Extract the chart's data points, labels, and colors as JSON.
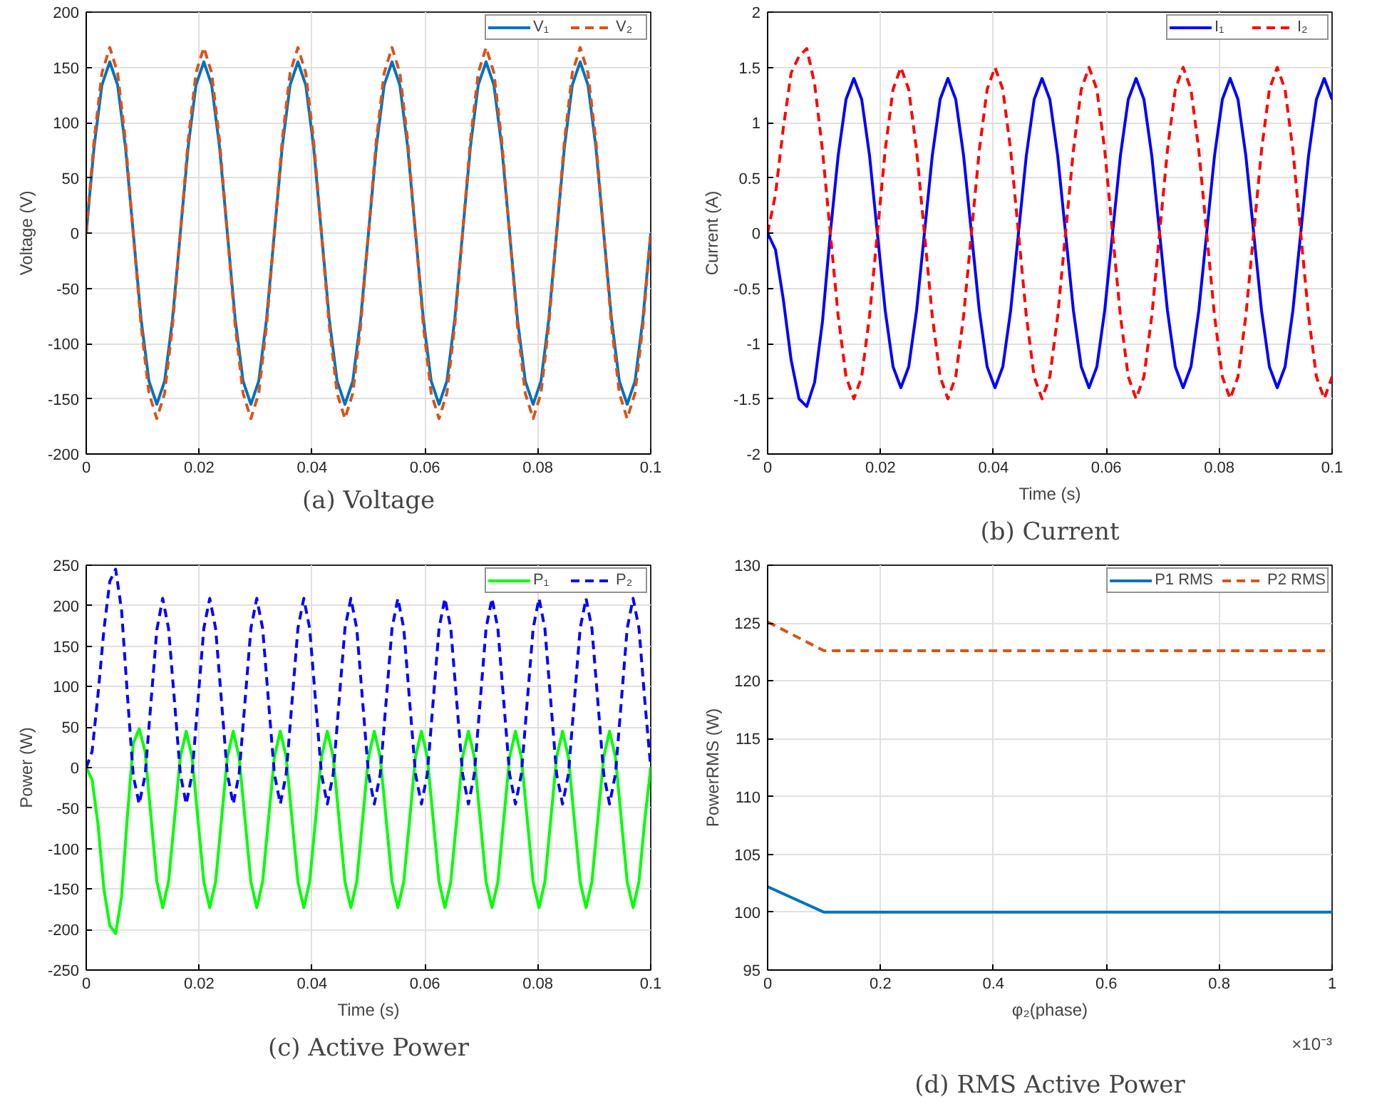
{
  "chart_data": [
    {
      "type": "line",
      "title": "(a) Voltage",
      "ylabel": "Voltage (V)",
      "grid": true,
      "legend": "top right",
      "xlim": [
        0,
        0.1
      ],
      "ylim": [
        -200,
        200
      ],
      "xticks": [
        0,
        0.02,
        0.04,
        0.06,
        0.08,
        0.1
      ],
      "yticks": [
        -200,
        -150,
        -100,
        -50,
        0,
        50,
        100,
        150,
        200
      ],
      "x": [
        0,
        0.00139,
        0.00278,
        0.00417,
        0.00556,
        0.00694,
        0.00833,
        0.00972,
        0.01111,
        0.0125,
        0.01389,
        0.01528,
        0.01667,
        0.01806,
        0.01944,
        0.02083,
        0.02222,
        0.02361,
        0.025,
        0.02639,
        0.02778,
        0.02917,
        0.03056,
        0.03194,
        0.03333,
        0.03472,
        0.03611,
        0.0375,
        0.03889,
        0.04028,
        0.04167,
        0.04306,
        0.04444,
        0.04583,
        0.04722,
        0.04861,
        0.05,
        0.05139,
        0.05278,
        0.05417,
        0.05556,
        0.05694,
        0.05833,
        0.05972,
        0.06111,
        0.0625,
        0.06389,
        0.06528,
        0.06667,
        0.06806,
        0.06944,
        0.07083,
        0.07222,
        0.07361,
        0.075,
        0.07639,
        0.07778,
        0.07917,
        0.08056,
        0.08194,
        0.08333,
        0.08472,
        0.08611,
        0.0875,
        0.08889,
        0.09028,
        0.09167,
        0.09306,
        0.09444,
        0.09583,
        0.09722,
        0.09861,
        0.1
      ],
      "series": [
        {
          "name": "V₁",
          "color": "#0072bd",
          "line_style": "solid",
          "values": [
            0,
            78,
            134,
            155,
            134,
            78,
            0,
            -78,
            -134,
            -155,
            -134,
            -78,
            0,
            78,
            134,
            155,
            134,
            78,
            0,
            -78,
            -134,
            -155,
            -134,
            -78,
            0,
            78,
            134,
            155,
            134,
            78,
            0,
            -78,
            -134,
            -155,
            -134,
            -78,
            0,
            78,
            134,
            155,
            134,
            78,
            0,
            -78,
            -134,
            -155,
            -134,
            -78,
            0,
            78,
            134,
            155,
            134,
            78,
            0,
            -78,
            -134,
            -155,
            -134,
            -78,
            0,
            78,
            134,
            155,
            134,
            78,
            0,
            -78,
            -134,
            -155,
            -134,
            -78,
            0
          ]
        },
        {
          "name": "V₂",
          "color": "#d95319",
          "line_style": "dashed",
          "values": [
            0,
            84,
            145,
            168,
            145,
            84,
            0,
            -84,
            -145,
            -168,
            -145,
            -84,
            0,
            84,
            145,
            168,
            145,
            84,
            0,
            -84,
            -145,
            -168,
            -145,
            -84,
            0,
            84,
            145,
            168,
            145,
            84,
            0,
            -84,
            -145,
            -168,
            -145,
            -84,
            0,
            84,
            145,
            168,
            145,
            84,
            0,
            -84,
            -145,
            -168,
            -145,
            -84,
            0,
            84,
            145,
            168,
            145,
            84,
            0,
            -84,
            -145,
            -168,
            -145,
            -84,
            0,
            84,
            145,
            168,
            145,
            84,
            0,
            -84,
            -145,
            -168,
            -145,
            -84,
            0
          ]
        }
      ]
    },
    {
      "type": "line",
      "title": "(b) Current",
      "xlabel": "Time (s)",
      "ylabel": "Current (A)",
      "grid": true,
      "legend": "top right",
      "xlim": [
        0,
        0.1
      ],
      "ylim": [
        -2,
        2
      ],
      "xticks": [
        0,
        0.02,
        0.04,
        0.06,
        0.08,
        0.1
      ],
      "yticks": [
        -2,
        -1.5,
        -1,
        -0.5,
        0,
        0.5,
        1,
        1.5,
        2
      ],
      "x": [
        0,
        0.00139,
        0.00278,
        0.00417,
        0.00556,
        0.00694,
        0.00833,
        0.00972,
        0.01111,
        0.0125,
        0.01389,
        0.01528,
        0.01667,
        0.01806,
        0.01944,
        0.02083,
        0.02222,
        0.02361,
        0.025,
        0.02639,
        0.02778,
        0.02917,
        0.03056,
        0.03194,
        0.03333,
        0.03472,
        0.03611,
        0.0375,
        0.03889,
        0.04028,
        0.04167,
        0.04306,
        0.04444,
        0.04583,
        0.04722,
        0.04861,
        0.05,
        0.05139,
        0.05278,
        0.05417,
        0.05556,
        0.05694,
        0.05833,
        0.05972,
        0.06111,
        0.0625,
        0.06389,
        0.06528,
        0.06667,
        0.06806,
        0.06944,
        0.07083,
        0.07222,
        0.07361,
        0.075,
        0.07639,
        0.07778,
        0.07917,
        0.08056,
        0.08194,
        0.08333,
        0.08472,
        0.08611,
        0.0875,
        0.08889,
        0.09028,
        0.09167,
        0.09306,
        0.09444,
        0.09583,
        0.09722,
        0.09861,
        0.1
      ],
      "series": [
        {
          "name": "I₁",
          "color": "#0000ff",
          "line_style": "solid",
          "values": [
            0,
            -0.15,
            -0.6,
            -1.15,
            -1.5,
            -1.57,
            -1.35,
            -0.8,
            0,
            0.7,
            1.21,
            1.4,
            1.21,
            0.7,
            0,
            -0.7,
            -1.21,
            -1.4,
            -1.21,
            -0.7,
            0,
            0.7,
            1.21,
            1.4,
            1.21,
            0.7,
            0,
            -0.7,
            -1.21,
            -1.4,
            -1.21,
            -0.7,
            0,
            0.7,
            1.21,
            1.4,
            1.21,
            0.7,
            0,
            -0.7,
            -1.21,
            -1.4,
            -1.21,
            -0.7,
            0,
            0.7,
            1.21,
            1.4,
            1.21,
            0.7,
            0,
            -0.7,
            -1.21,
            -1.4,
            -1.21,
            -0.7,
            0,
            0.7,
            1.21,
            1.4,
            1.21,
            0.7,
            0,
            -0.7,
            -1.21,
            -1.4,
            -1.21,
            -0.7,
            0,
            0.7,
            1.21,
            1.4,
            1.21
          ]
        },
        {
          "name": "I₂",
          "color": "#ff0000",
          "line_style": "dashed",
          "values": [
            0,
            0.35,
            0.95,
            1.45,
            1.6,
            1.67,
            1.35,
            0.75,
            0,
            -0.75,
            -1.3,
            -1.5,
            -1.3,
            -0.75,
            0,
            0.75,
            1.3,
            1.5,
            1.3,
            0.75,
            0,
            -0.75,
            -1.3,
            -1.5,
            -1.3,
            -0.75,
            0,
            0.75,
            1.3,
            1.5,
            1.3,
            0.75,
            0,
            -0.75,
            -1.3,
            -1.5,
            -1.3,
            -0.75,
            0,
            0.75,
            1.3,
            1.5,
            1.3,
            0.75,
            0,
            -0.75,
            -1.3,
            -1.5,
            -1.3,
            -0.75,
            0,
            0.75,
            1.3,
            1.5,
            1.3,
            0.75,
            0,
            -0.75,
            -1.3,
            -1.5,
            -1.3,
            -0.75,
            0,
            0.75,
            1.3,
            1.5,
            1.3,
            0.75,
            0,
            -0.75,
            -1.3,
            -1.5,
            -1.3
          ]
        }
      ]
    },
    {
      "type": "line",
      "title": "(c) Active Power",
      "xlabel": "Time (s)",
      "ylabel": "Power (W)",
      "grid": true,
      "legend": "top right",
      "xlim": [
        0,
        0.1
      ],
      "ylim": [
        -250,
        250
      ],
      "xticks": [
        0,
        0.02,
        0.04,
        0.06,
        0.08,
        0.1
      ],
      "yticks": [
        -250,
        -200,
        -150,
        -100,
        -50,
        0,
        50,
        100,
        150,
        200,
        250
      ],
      "x": [
        0,
        0.00104,
        0.00208,
        0.00313,
        0.00417,
        0.00521,
        0.00625,
        0.00729,
        0.00833,
        0.00938,
        0.01042,
        0.01146,
        0.0125,
        0.01354,
        0.01458,
        0.01563,
        0.01667,
        0.01771,
        0.01875,
        0.01979,
        0.02083,
        0.02188,
        0.02292,
        0.02396,
        0.025,
        0.02604,
        0.02708,
        0.02813,
        0.02917,
        0.03021,
        0.03125,
        0.03229,
        0.03333,
        0.03438,
        0.03542,
        0.03646,
        0.0375,
        0.03854,
        0.03958,
        0.04063,
        0.04167,
        0.04271,
        0.04375,
        0.04479,
        0.04583,
        0.04688,
        0.04792,
        0.04896,
        0.05,
        0.05104,
        0.05208,
        0.05313,
        0.05417,
        0.05521,
        0.05625,
        0.05729,
        0.05833,
        0.05938,
        0.06042,
        0.06146,
        0.0625,
        0.06354,
        0.06458,
        0.06563,
        0.06667,
        0.06771,
        0.06875,
        0.06979,
        0.07083,
        0.07188,
        0.07292,
        0.07396,
        0.075,
        0.07604,
        0.07708,
        0.07813,
        0.07917,
        0.08021,
        0.08125,
        0.08229,
        0.08333,
        0.08438,
        0.08542,
        0.08646,
        0.0875,
        0.08854,
        0.08958,
        0.09063,
        0.09167,
        0.09271,
        0.09375,
        0.09479,
        0.09583,
        0.09688,
        0.09792,
        0.09896,
        0.1
      ],
      "series": [
        {
          "name": "P₁",
          "color": "#00ff00",
          "line_style": "solid",
          "values": [
            0,
            -15,
            -70,
            -150,
            -195,
            -205,
            -160,
            -60,
            30,
            48,
            20,
            -60,
            -140,
            -173,
            -141,
            -64,
            13,
            45,
            13,
            -64,
            -141,
            -173,
            -141,
            -64,
            13,
            45,
            13,
            -64,
            -141,
            -173,
            -141,
            -64,
            13,
            45,
            13,
            -64,
            -141,
            -173,
            -141,
            -64,
            13,
            45,
            13,
            -64,
            -141,
            -173,
            -141,
            -64,
            13,
            45,
            13,
            -64,
            -141,
            -173,
            -141,
            -64,
            13,
            45,
            13,
            -64,
            -141,
            -173,
            -141,
            -64,
            13,
            45,
            13,
            -64,
            -141,
            -173,
            -141,
            -64,
            13,
            45,
            13,
            -64,
            -141,
            -173,
            -141,
            -64,
            13,
            45,
            13,
            -64,
            -141,
            -173,
            -141,
            -64,
            13,
            45,
            13,
            -64,
            -141,
            -173,
            -141,
            -64,
            0
          ]
        },
        {
          "name": "P₂",
          "color": "#0000ff",
          "line_style": "dashed",
          "values": [
            0,
            20,
            90,
            170,
            230,
            245,
            195,
            90,
            -10,
            -45,
            -10,
            80,
            170,
            209,
            172,
            82,
            -8,
            -45,
            -8,
            82,
            172,
            209,
            172,
            82,
            -8,
            -45,
            -8,
            82,
            172,
            209,
            172,
            82,
            -8,
            -45,
            -8,
            82,
            172,
            209,
            172,
            82,
            -8,
            -45,
            -8,
            82,
            172,
            209,
            172,
            82,
            -8,
            -45,
            -8,
            82,
            172,
            209,
            172,
            82,
            -8,
            -45,
            -8,
            82,
            172,
            209,
            172,
            82,
            -8,
            -45,
            -8,
            82,
            172,
            209,
            172,
            82,
            -8,
            -45,
            -8,
            82,
            172,
            209,
            172,
            82,
            -8,
            -45,
            -8,
            82,
            172,
            209,
            172,
            82,
            -8,
            -45,
            -8,
            82,
            172,
            209,
            172,
            82,
            0
          ]
        }
      ]
    },
    {
      "type": "line",
      "title": "(d) RMS Active Power",
      "xlabel": "φ₂(phase)",
      "ylabel": "PowerRMS (W)",
      "grid": true,
      "legend": "top right",
      "annotations": [
        "×10⁻³"
      ],
      "xlim": [
        0,
        1
      ],
      "ylim": [
        95,
        130
      ],
      "xticks": [
        0,
        0.2,
        0.4,
        0.6,
        0.8,
        1
      ],
      "yticks": [
        95,
        100,
        105,
        110,
        115,
        120,
        125,
        130
      ],
      "series": [
        {
          "name": "P1 RMS",
          "color": "#0072bd",
          "line_style": "solid",
          "x": [
            0,
            0.1,
            1
          ],
          "values": [
            102.2,
            100,
            100
          ]
        },
        {
          "name": "P2 RMS",
          "color": "#d95319",
          "line_style": "dashed",
          "x": [
            0,
            0.1,
            1
          ],
          "values": [
            125.1,
            122.6,
            122.6
          ]
        }
      ]
    }
  ]
}
